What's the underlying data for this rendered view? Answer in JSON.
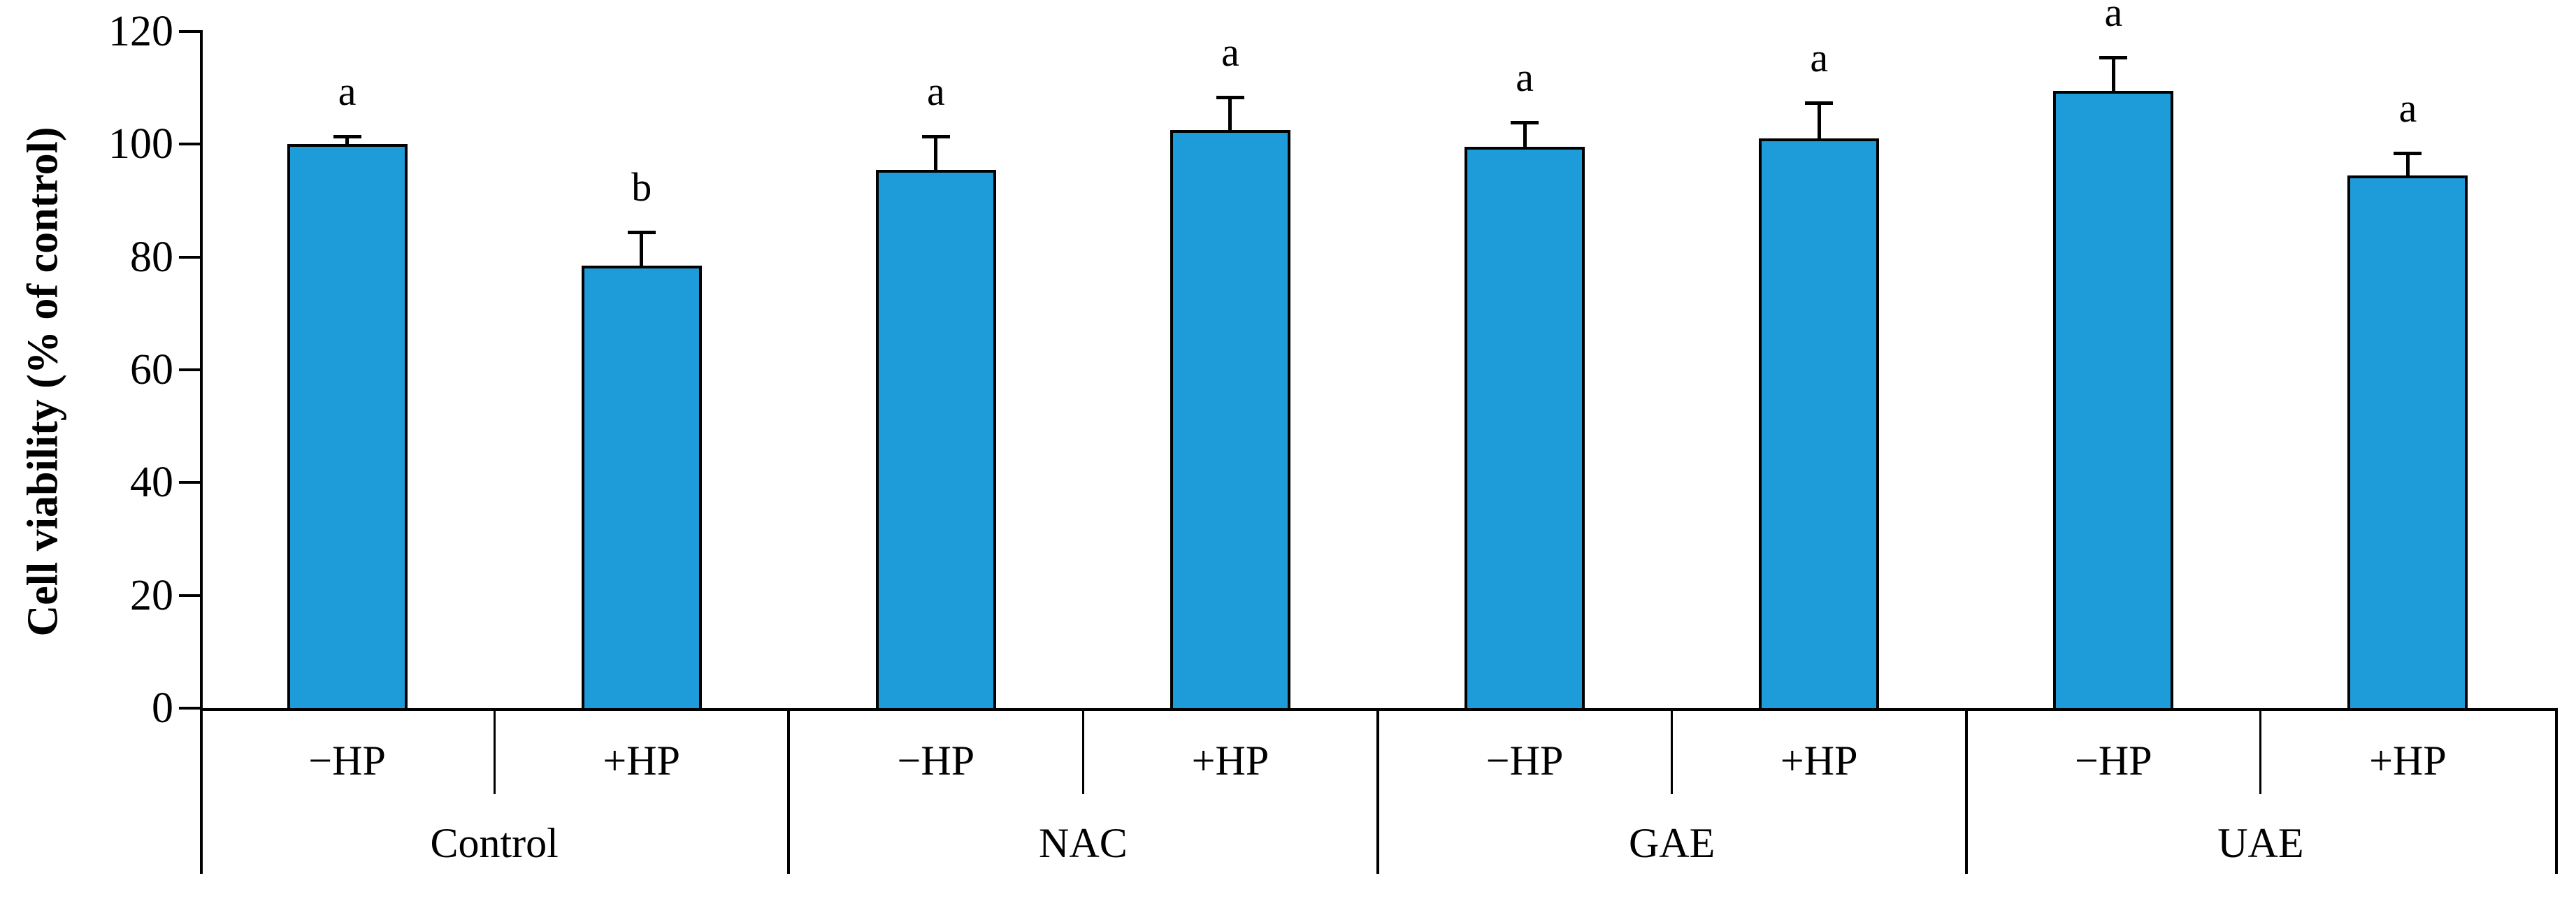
{
  "chart_data": {
    "type": "bar",
    "title": "",
    "xlabel": "",
    "ylabel": "Cell viability (% of control)",
    "ylim": [
      0,
      120
    ],
    "yticks": [
      0,
      20,
      40,
      60,
      80,
      100,
      120
    ],
    "grid": false,
    "legend": false,
    "bar_color": "#1E9CD9",
    "bar_border_color": "#000000",
    "axis_color": "#000000",
    "groups": [
      "Control",
      "NAC",
      "GAE",
      "UAE"
    ],
    "sub_categories": [
      "−HP",
      "+HP"
    ],
    "bars": [
      {
        "group": "Control",
        "condition": "−HP",
        "value": 100,
        "error": 1.5,
        "letter": "a"
      },
      {
        "group": "Control",
        "condition": "+HP",
        "value": 78.5,
        "error": 6,
        "letter": "b"
      },
      {
        "group": "NAC",
        "condition": "−HP",
        "value": 95.5,
        "error": 6,
        "letter": "a"
      },
      {
        "group": "NAC",
        "condition": "+HP",
        "value": 102.5,
        "error": 6,
        "letter": "a"
      },
      {
        "group": "GAE",
        "condition": "−HP",
        "value": 99.5,
        "error": 4.5,
        "letter": "a"
      },
      {
        "group": "GAE",
        "condition": "+HP",
        "value": 101,
        "error": 6.5,
        "letter": "a"
      },
      {
        "group": "UAE",
        "condition": "−HP",
        "value": 109.5,
        "error": 6,
        "letter": "a"
      },
      {
        "group": "UAE",
        "condition": "+HP",
        "value": 94.5,
        "error": 4,
        "letter": "a"
      }
    ]
  }
}
